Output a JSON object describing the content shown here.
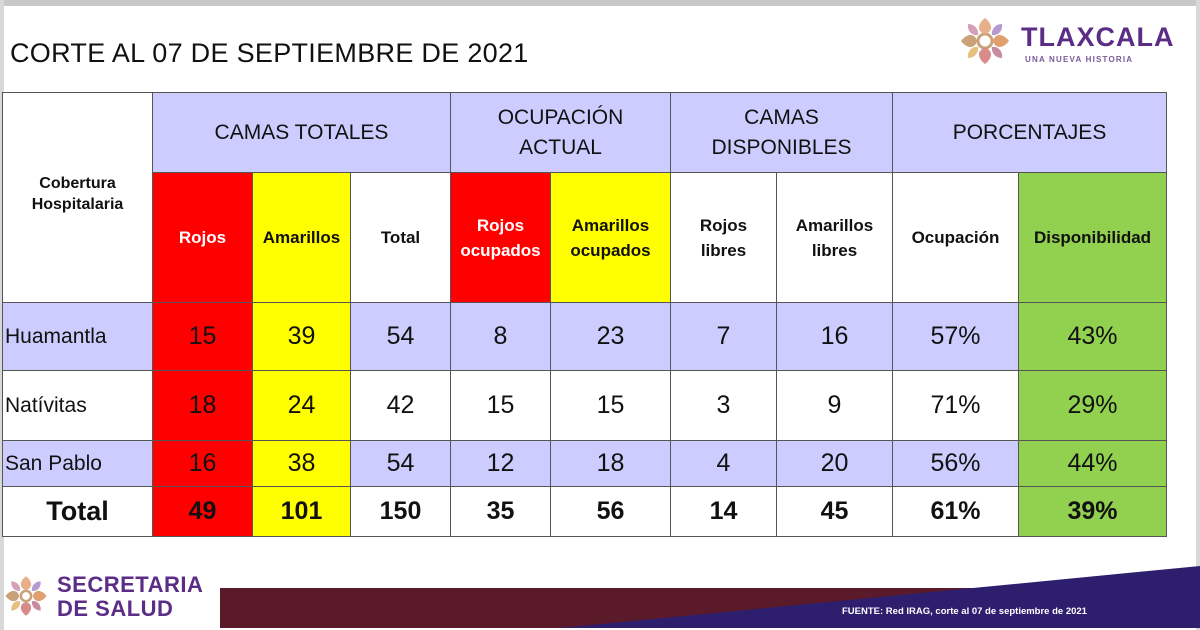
{
  "document": {
    "title": "CORTE AL 07 DE SEPTIEMBRE DE 2021"
  },
  "logo_top": {
    "brand": "TLAXCALA",
    "tagline": "UNA NUEVA HISTORIA",
    "icon": "tlaxcala-flower-logo"
  },
  "table": {
    "corner_header": [
      "Cobertura",
      "Hospitalaria"
    ],
    "groups": {
      "camas_totales": "CAMAS TOTALES",
      "ocupacion_actual": [
        "OCUPACIÓN",
        "ACTUAL"
      ],
      "camas_disponibles": [
        "CAMAS",
        "DISPONIBLES"
      ],
      "porcentajes": "PORCENTAJES"
    },
    "subheaders": {
      "rojos": "Rojos",
      "amarillos": "Amarillos",
      "total": "Total",
      "rojos_ocupados": [
        "Rojos",
        "ocupados"
      ],
      "amarillos_ocupados": [
        "Amarillos",
        "ocupados"
      ],
      "rojos_libres": [
        "Rojos",
        "libres"
      ],
      "amarillos_libres": [
        "Amarillos",
        "libres"
      ],
      "ocupacion": "Ocupación",
      "disponibilidad": "Disponibilidad"
    },
    "rows": [
      {
        "name": "Huamantla",
        "rojos": "15",
        "amarillos": "39",
        "total": "54",
        "rojos_ocupados": "8",
        "amarillos_ocupados": "23",
        "rojos_libres": "7",
        "amarillos_libres": "16",
        "ocupacion": "57%",
        "disponibilidad": "43%"
      },
      {
        "name": "Natívitas",
        "rojos": "18",
        "amarillos": "24",
        "total": "42",
        "rojos_ocupados": "15",
        "amarillos_ocupados": "15",
        "rojos_libres": "3",
        "amarillos_libres": "9",
        "ocupacion": "71%",
        "disponibilidad": "29%"
      },
      {
        "name": "San Pablo",
        "rojos": "16",
        "amarillos": "38",
        "total": "54",
        "rojos_ocupados": "12",
        "amarillos_ocupados": "18",
        "rojos_libres": "4",
        "amarillos_libres": "20",
        "ocupacion": "56%",
        "disponibilidad": "44%"
      }
    ],
    "total_row": {
      "name": "Total",
      "rojos": "49",
      "amarillos": "101",
      "total": "150",
      "rojos_ocupados": "35",
      "amarillos_ocupados": "56",
      "rojos_libres": "14",
      "amarillos_libres": "45",
      "ocupacion": "61%",
      "disponibilidad": "39%"
    }
  },
  "footer": {
    "logo_line1": "SECRETARIA",
    "logo_line2": "DE SALUD",
    "icon": "tlaxcala-flower-logo",
    "source": "FUENTE:  Red IRAG, corte al 07 de septiembre de 2021"
  },
  "colors": {
    "header_lavender": "#ccccff",
    "red": "#ff0000",
    "yellow": "#ffff00",
    "green": "#92d050",
    "brand_purple": "#5b2d86",
    "band_maroon": "#5a1a2a",
    "band_navy": "#2e1e6e"
  }
}
